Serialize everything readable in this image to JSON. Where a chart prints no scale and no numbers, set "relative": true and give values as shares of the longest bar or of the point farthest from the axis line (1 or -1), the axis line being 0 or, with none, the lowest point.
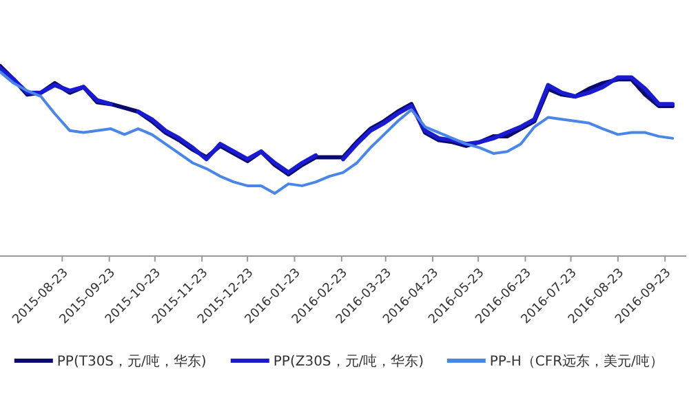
{
  "chart_data": {
    "type": "line",
    "relative": true,
    "legend": "bottom",
    "grid": false,
    "marker": "none",
    "line_style": "solid",
    "x": [
      "2015-07-13",
      "2015-07-22",
      "2015-07-31",
      "2015-08-09",
      "2015-08-18",
      "2015-08-28",
      "2015-09-06",
      "2015-09-15",
      "2015-09-24",
      "2015-10-03",
      "2015-10-12",
      "2015-10-21",
      "2015-10-30",
      "2015-11-08",
      "2015-11-17",
      "2015-11-26",
      "2015-12-05",
      "2015-12-14",
      "2015-12-23",
      "2016-01-01",
      "2016-01-10",
      "2016-01-19",
      "2016-01-28",
      "2016-02-06",
      "2016-02-15",
      "2016-02-24",
      "2016-03-04",
      "2016-03-13",
      "2016-03-22",
      "2016-03-31",
      "2016-04-09",
      "2016-04-18",
      "2016-04-27",
      "2016-05-06",
      "2016-05-15",
      "2016-05-24",
      "2016-06-02",
      "2016-06-11",
      "2016-06-20",
      "2016-06-29",
      "2016-07-08",
      "2016-07-17",
      "2016-07-26",
      "2016-08-04",
      "2016-08-13",
      "2016-08-23",
      "2016-09-01",
      "2016-09-10",
      "2016-09-19",
      "2016-09-28"
    ],
    "xlim": [
      "2015-07-13",
      "2016-10-07"
    ],
    "xticks": [
      {
        "value": "2015-08-23",
        "label": "2015-08-23"
      },
      {
        "value": "2015-09-23",
        "label": "2015-09-23"
      },
      {
        "value": "2015-10-23",
        "label": "2015-10-23"
      },
      {
        "value": "2015-11-23",
        "label": "2015-11-23"
      },
      {
        "value": "2015-12-23",
        "label": "2015-12-23"
      },
      {
        "value": "2016-01-23",
        "label": "2016-01-23"
      },
      {
        "value": "2016-02-23",
        "label": "2016-02-23"
      },
      {
        "value": "2016-03-23",
        "label": "2016-03-23"
      },
      {
        "value": "2016-04-23",
        "label": "2016-04-23"
      },
      {
        "value": "2016-05-23",
        "label": "2016-05-23"
      },
      {
        "value": "2016-06-23",
        "label": "2016-06-23"
      },
      {
        "value": "2016-07-23",
        "label": "2016-07-23"
      },
      {
        "value": "2016-08-23",
        "label": "2016-08-23"
      },
      {
        "value": "2016-09-23",
        "label": "2016-09-23"
      }
    ],
    "series": [
      {
        "name": "PP(T30S，元/吨，华东)",
        "color": "#0a0a6e",
        "values": [
          1.0,
          0.93,
          0.85,
          0.86,
          0.91,
          0.86,
          0.89,
          0.81,
          0.8,
          0.78,
          0.76,
          0.71,
          0.65,
          0.61,
          0.56,
          0.52,
          0.58,
          0.54,
          0.5,
          0.55,
          0.48,
          0.43,
          0.48,
          0.52,
          0.52,
          0.52,
          0.6,
          0.67,
          0.71,
          0.76,
          0.8,
          0.65,
          0.61,
          0.6,
          0.58,
          0.6,
          0.63,
          0.63,
          0.67,
          0.71,
          0.88,
          0.85,
          0.84,
          0.88,
          0.91,
          0.93,
          0.93,
          0.85,
          0.79,
          0.79
        ]
      },
      {
        "name": "PP(Z30S，元/吨，华东)",
        "color": "#1a1ad0",
        "values": [
          0.99,
          0.93,
          0.86,
          0.86,
          0.9,
          0.87,
          0.89,
          0.82,
          0.8,
          null,
          0.76,
          0.72,
          0.66,
          0.62,
          0.57,
          0.51,
          0.59,
          0.55,
          0.51,
          0.55,
          0.49,
          0.44,
          0.49,
          0.53,
          null,
          0.51,
          0.59,
          0.66,
          0.7,
          0.75,
          0.79,
          0.66,
          0.62,
          0.61,
          0.59,
          0.6,
          0.62,
          0.65,
          0.68,
          0.72,
          0.9,
          0.86,
          0.84,
          0.86,
          0.89,
          0.94,
          0.94,
          0.88,
          0.8,
          0.8
        ]
      },
      {
        "name": "PP-H（CFR远东，美元/吨）",
        "color": "#4a86e8",
        "values": [
          0.97,
          0.91,
          0.87,
          0.84,
          0.75,
          0.66,
          0.65,
          0.66,
          0.67,
          0.64,
          0.67,
          0.64,
          0.59,
          0.54,
          0.49,
          0.46,
          0.42,
          0.39,
          0.37,
          0.37,
          0.33,
          0.38,
          0.37,
          0.39,
          0.42,
          0.44,
          0.49,
          0.57,
          0.64,
          0.71,
          0.77,
          0.68,
          0.65,
          0.62,
          0.59,
          0.57,
          0.54,
          0.55,
          0.59,
          0.68,
          0.73,
          0.72,
          0.71,
          0.7,
          0.67,
          0.64,
          0.65,
          0.65,
          0.63,
          0.62
        ]
      }
    ]
  }
}
